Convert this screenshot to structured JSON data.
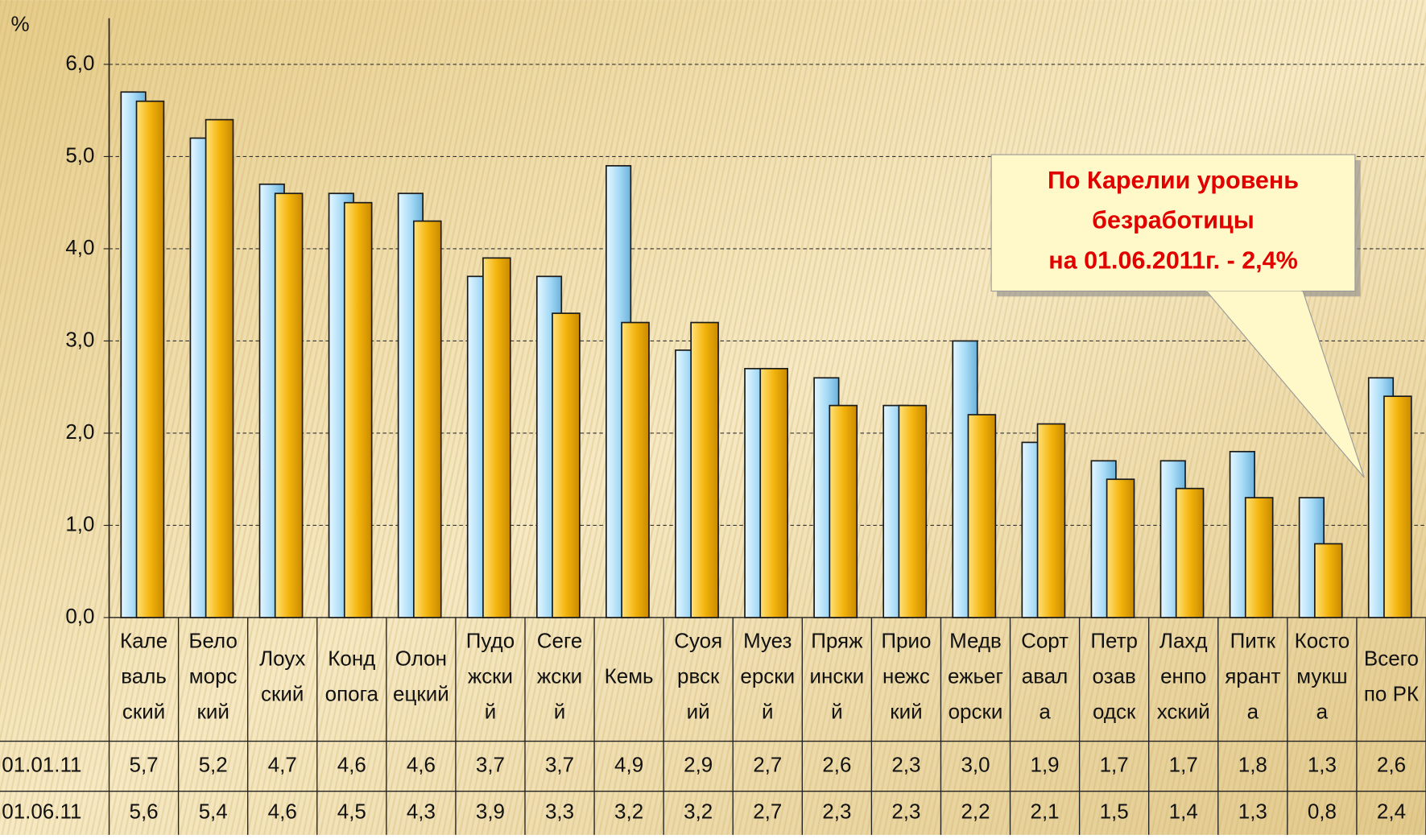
{
  "chart_data": {
    "type": "bar",
    "y_axis_label": "%",
    "categories": [
      [
        "Кале",
        "валь",
        "ский"
      ],
      [
        "Бело",
        "морс",
        "кий"
      ],
      [
        "Лоух",
        "ский"
      ],
      [
        "Конд",
        "опога"
      ],
      [
        "Олон",
        "ецкий"
      ],
      [
        "Пудо",
        "жски",
        "й"
      ],
      [
        "Сеге",
        "жски",
        "й"
      ],
      [
        "Кемь"
      ],
      [
        "Суоя",
        "рвск",
        "ий"
      ],
      [
        "Муез",
        "ерски",
        "й"
      ],
      [
        "Пряж",
        "ински",
        "й"
      ],
      [
        "Прио",
        "нежс",
        "кий"
      ],
      [
        "Медв",
        "ежьег",
        "орски"
      ],
      [
        "Сорт",
        "авал",
        "а"
      ],
      [
        "Петр",
        "озав",
        "одск"
      ],
      [
        "Лахд",
        "енпо",
        "хский"
      ],
      [
        "Питк",
        "ярант",
        "а"
      ],
      [
        "Косто",
        "мукш",
        "а"
      ],
      [
        "Всего",
        "по РК"
      ]
    ],
    "series": [
      {
        "name": "01.01.11",
        "color": "#9fd6f5",
        "values": [
          5.7,
          5.2,
          4.7,
          4.6,
          4.6,
          3.7,
          3.7,
          4.9,
          2.9,
          2.7,
          2.6,
          2.3,
          3.0,
          1.9,
          1.7,
          1.7,
          1.8,
          1.3,
          2.6
        ],
        "value_labels": [
          "5,7",
          "5,2",
          "4,7",
          "4,6",
          "4,6",
          "3,7",
          "3,7",
          "4,9",
          "2,9",
          "2,7",
          "2,6",
          "2,3",
          "3,0",
          "1,9",
          "1,7",
          "1,7",
          "1,8",
          "1,3",
          "2,6"
        ]
      },
      {
        "name": "01.06.11",
        "color": "#f2b40c",
        "values": [
          5.6,
          5.4,
          4.6,
          4.5,
          4.3,
          3.9,
          3.3,
          3.2,
          3.2,
          2.7,
          2.3,
          2.3,
          2.2,
          2.1,
          1.5,
          1.4,
          1.3,
          0.8,
          2.4
        ],
        "value_labels": [
          "5,6",
          "5,4",
          "4,6",
          "4,5",
          "4,3",
          "3,9",
          "3,3",
          "3,2",
          "3,2",
          "2,7",
          "2,3",
          "2,3",
          "2,2",
          "2,1",
          "1,5",
          "1,4",
          "1,3",
          "0,8",
          "2,4"
        ]
      }
    ],
    "ylim": [
      0,
      6.5
    ],
    "yticks": [
      {
        "value": 0,
        "label": "0,0"
      },
      {
        "value": 1,
        "label": "1,0"
      },
      {
        "value": 2,
        "label": "2,0"
      },
      {
        "value": 3,
        "label": "3,0"
      },
      {
        "value": 4,
        "label": "4,0"
      },
      {
        "value": 5,
        "label": "5,0"
      },
      {
        "value": 6,
        "label": "6,0"
      }
    ],
    "grid": true,
    "annotation": [
      "По Карелии уровень",
      "безработицы",
      "на 01.06.2011г.  -  2,4%"
    ]
  }
}
